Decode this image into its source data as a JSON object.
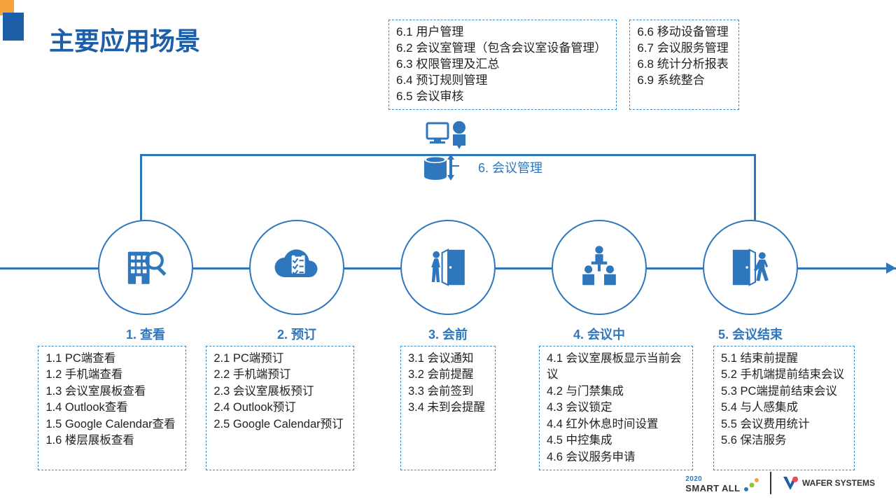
{
  "colors": {
    "primary": "#2f77bd",
    "title": "#1d5ea8",
    "deco_orange": "#f6a23c",
    "deco_blue": "#1d5ea8",
    "dashed_border": "#3c8bcf",
    "text": "#222222",
    "bg": "#ffffff"
  },
  "title": "主要应用场景",
  "management": {
    "label": "6. 会议管理",
    "left_box": [
      "6.1 用户管理",
      "6.2 会议室管理（包含会议室设备管理）",
      "6.3 权限管理及汇总",
      "6.4 预订规则管理",
      "6.5 会议审核"
    ],
    "right_box": [
      "6.6 移动设备管理",
      "6.7 会议服务管理",
      "6.8 统计分析报表",
      "6.9 系统整合"
    ]
  },
  "steps": [
    {
      "label": "1. 查看",
      "icon": "building-search",
      "items": [
        "1.1 PC端查看",
        "1.2 手机端查看",
        "1.3 会议室展板查看",
        "1.4 Outlook查看",
        "1.5 Google Calendar查看",
        "1.6 楼层展板查看"
      ]
    },
    {
      "label": "2. 预订",
      "icon": "cloud-checklist",
      "items": [
        "2.1 PC端预订",
        "2.2 手机端预订",
        "2.3 会议室展板预订",
        "2.4 Outlook预订",
        "2.5 Google Calendar预订"
      ]
    },
    {
      "label": "3. 会前",
      "icon": "person-enter-door",
      "items": [
        "3.1 会议通知",
        "3.2 会前提醒",
        "3.3 会前签到",
        "3.4 未到会提醒"
      ]
    },
    {
      "label": "4. 会议中",
      "icon": "meeting-presenter",
      "items": [
        "4.1 会议室展板显示当前会议",
        "4.2 与门禁集成",
        "4.3 会议锁定",
        "4.4 红外休息时间设置",
        "4.5 中控集成",
        "4.6 会议服务申请"
      ]
    },
    {
      "label": "5. 会议结束",
      "icon": "person-leave-door",
      "items": [
        "5.1 结束前提醒",
        "5.2 手机端提前结束会议",
        "5.3 PC端提前结束会议",
        "5.4 与人感集成",
        "5.5 会议费用统计",
        "5.6 保洁服务"
      ]
    }
  ],
  "footer": {
    "smart_year": "2020",
    "smart_label": "SMART ALL",
    "wafer_label": "WAFER SYSTEMS"
  }
}
